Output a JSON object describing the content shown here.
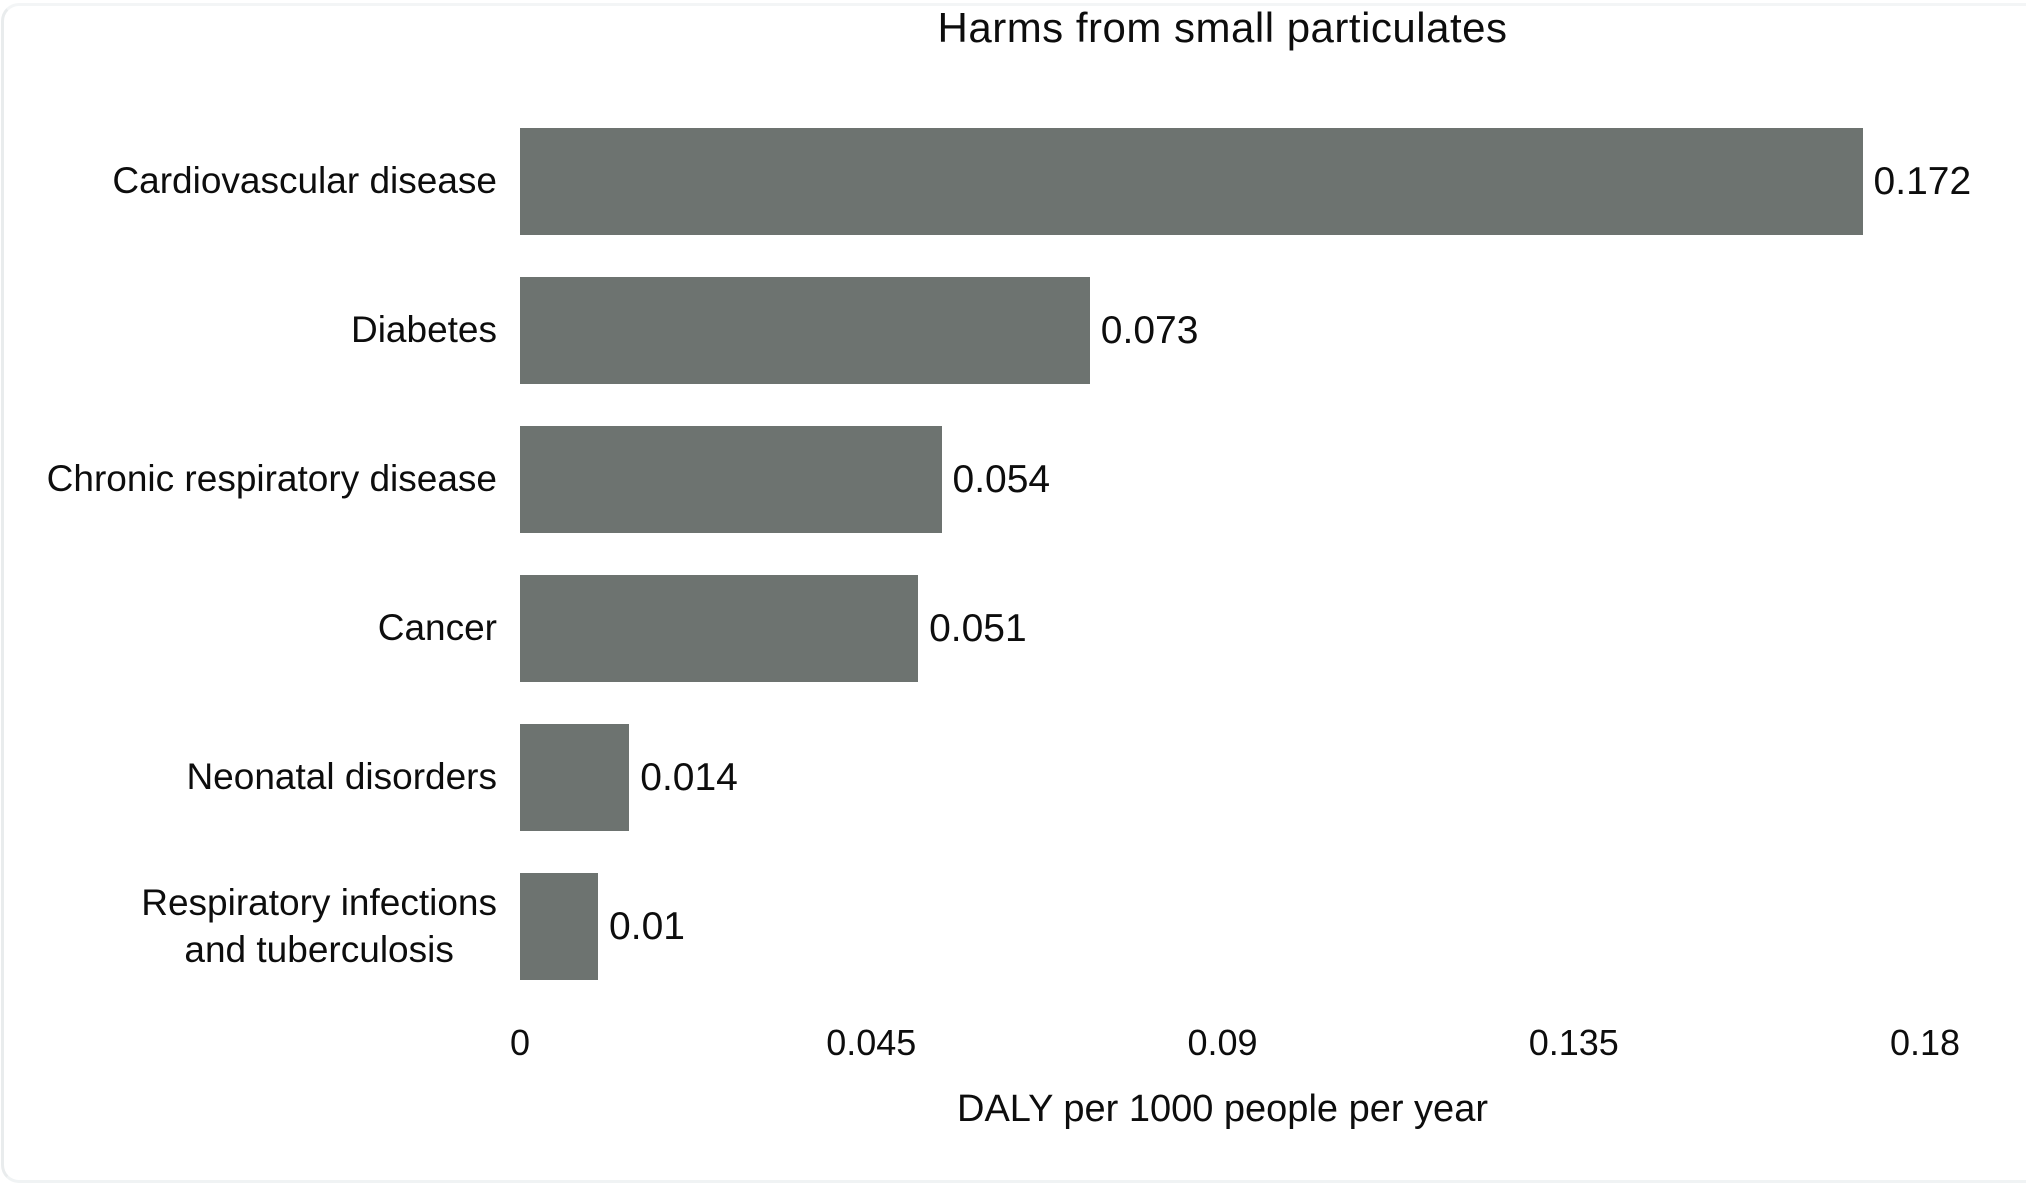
{
  "chart_data": {
    "type": "bar",
    "orientation": "horizontal",
    "title": "Harms from small particulates",
    "xlabel": "DALY per 1000 people per year",
    "xlim": [
      0,
      0.18
    ],
    "xticks": [
      0,
      0.045,
      0.09,
      0.135,
      0.18
    ],
    "xtick_labels": [
      "0",
      "0.045",
      "0.09",
      "0.135",
      "0.18"
    ],
    "categories": [
      "Cardiovascular disease",
      "Diabetes",
      "Chronic respiratory disease",
      "Cancer",
      "Neonatal disorders",
      "Respiratory infections\nand tuberculosis"
    ],
    "values": [
      0.172,
      0.073,
      0.054,
      0.051,
      0.014,
      0.01
    ],
    "value_labels": [
      "0.172",
      "0.073",
      "0.054",
      "0.051",
      "0.014",
      "0.01"
    ],
    "grid": false,
    "legend": false
  },
  "colors": {
    "bar": "#6d7370",
    "text": "#0d0d0d",
    "card_border": "#e9eced",
    "background": "#ffffff"
  }
}
